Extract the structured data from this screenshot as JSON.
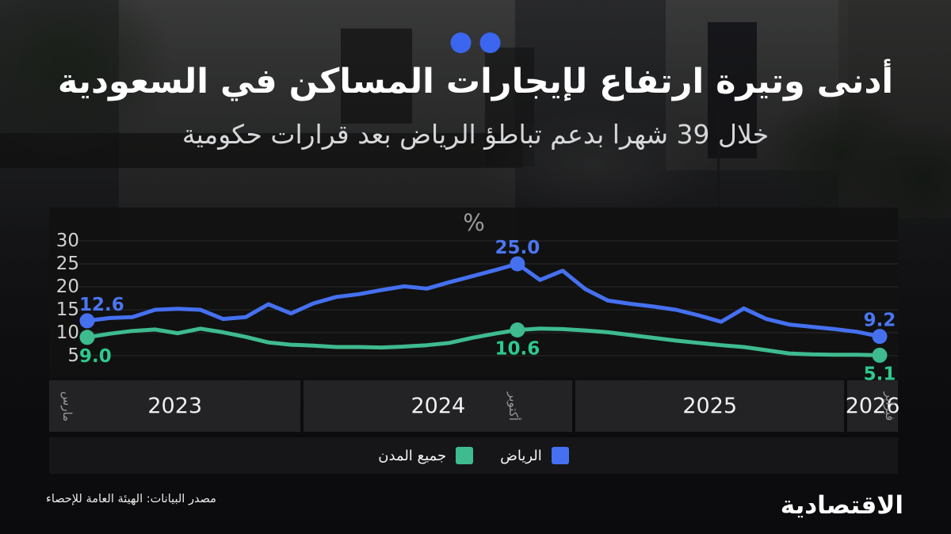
{
  "header": {
    "title": "أدنى وتيرة ارتفاع لإيجارات المساكن في السعودية",
    "subtitle": "خلال 39 شهرا بدعم تباطؤ الرياض بعد قرارات حكومية"
  },
  "brand": {
    "dots_color": "#3B66F0"
  },
  "chart_data": {
    "type": "line",
    "unit_label": "%",
    "grid": true,
    "legend_position": "bottom",
    "yticks": [
      30,
      25,
      20,
      15,
      10,
      5
    ],
    "ylim": [
      5,
      30
    ],
    "x": [
      "2023-03",
      "2023-04",
      "2023-05",
      "2023-06",
      "2023-07",
      "2023-08",
      "2023-09",
      "2023-10",
      "2023-11",
      "2023-12",
      "2024-01",
      "2024-02",
      "2024-03",
      "2024-04",
      "2024-05",
      "2024-06",
      "2024-07",
      "2024-08",
      "2024-09",
      "2024-10",
      "2024-11",
      "2024-12",
      "2025-01",
      "2025-02",
      "2025-03",
      "2025-04",
      "2025-05",
      "2025-06",
      "2025-07",
      "2025-08",
      "2025-09",
      "2025-10",
      "2025-11",
      "2025-12",
      "2026-01",
      "2026-02"
    ],
    "series": [
      {
        "name": "الرياض",
        "color": "#4570F0",
        "label_color": "#4B76F2",
        "values": [
          12.6,
          13.2,
          13.4,
          15.0,
          15.2,
          15.0,
          13.0,
          13.4,
          16.2,
          14.2,
          16.4,
          17.8,
          18.4,
          19.3,
          20.1,
          19.6,
          21.0,
          22.3,
          23.6,
          25.0,
          21.5,
          23.5,
          19.5,
          17.0,
          16.3,
          15.7,
          15.0,
          13.8,
          12.4,
          15.3,
          13.0,
          11.8,
          11.3,
          10.8,
          10.2,
          9.2
        ],
        "labeled_points": [
          {
            "index": 0,
            "label": "12.6"
          },
          {
            "index": 19,
            "label": "25.0"
          },
          {
            "index": 35,
            "label": "9.2"
          }
        ]
      },
      {
        "name": "جميع المدن",
        "color": "#3EBB8F",
        "label_color": "#2EC98E",
        "values": [
          9.0,
          9.8,
          10.4,
          10.7,
          9.9,
          10.9,
          10.1,
          9.1,
          7.9,
          7.4,
          7.2,
          6.9,
          6.9,
          6.8,
          7.0,
          7.3,
          7.8,
          8.9,
          9.8,
          10.6,
          10.9,
          10.8,
          10.5,
          10.1,
          9.5,
          8.9,
          8.3,
          7.8,
          7.3,
          6.9,
          6.2,
          5.5,
          5.3,
          5.2,
          5.2,
          5.1
        ],
        "labeled_points": [
          {
            "index": 0,
            "label": "9.0"
          },
          {
            "index": 19,
            "label": "10.6"
          },
          {
            "index": 35,
            "label": "5.1"
          }
        ]
      }
    ],
    "x_year_bands": [
      {
        "label": "2023",
        "months": 10
      },
      {
        "label": "2024",
        "months": 12
      },
      {
        "label": "2025",
        "months": 12
      },
      {
        "label": "2026",
        "months": 2
      }
    ],
    "x_month_markers": [
      {
        "label": "مارس",
        "index": 0
      },
      {
        "label": "أكتوبر",
        "index": 19
      },
      {
        "label": "فبراير",
        "index": 35
      }
    ]
  },
  "legend": {
    "items": [
      {
        "label": "الرياض",
        "color": "#4570F0"
      },
      {
        "label": "جميع المدن",
        "color": "#3EBB8F"
      }
    ]
  },
  "footer": {
    "source": "مصدر البيانات: الهيئة العامة للإحصاء",
    "logo": "الاقتصادية"
  }
}
